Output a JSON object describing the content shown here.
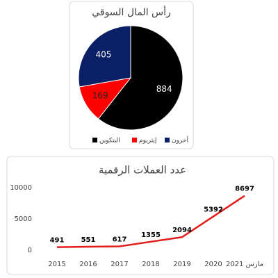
{
  "chart_data": [
    {
      "type": "pie",
      "title": "رأس المال السوقي",
      "categories": [
        "البتكوين",
        "إيثريوم",
        "أخرون"
      ],
      "values": [
        884,
        169,
        405
      ],
      "colors": [
        "#000000",
        "#ff0000",
        "#0a1f66"
      ]
    },
    {
      "type": "line",
      "title": "عدد العملات الرقمية",
      "categories": [
        "2015",
        "2016",
        "2017",
        "2018",
        "2019",
        "2020",
        "مارس 2021"
      ],
      "values": [
        491,
        551,
        617,
        1355,
        2094,
        5392,
        8697
      ],
      "color": "#e21b1b",
      "ylim": [
        0,
        10000
      ],
      "yticks": [
        0,
        5000,
        10000
      ]
    }
  ]
}
